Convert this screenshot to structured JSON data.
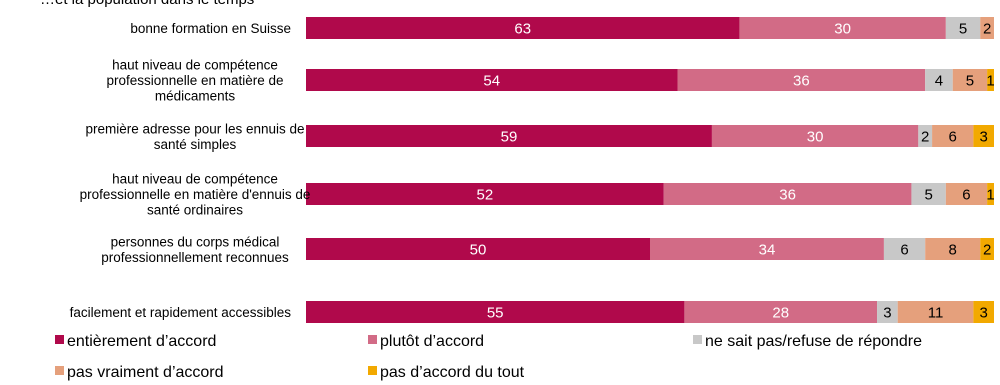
{
  "chart_data": {
    "type": "bar",
    "orientation": "horizontal",
    "stacked": true,
    "title": "…et la population dans le temps",
    "categories": [
      "bonne formation en Suisse",
      "haut niveau de compétence professionnelle en matière de médicaments",
      "première adresse pour les ennuis de santé simples",
      "haut niveau de compétence professionnelle en matière d'ennuis de santé ordinaires",
      "personnes du corps médical professionnellement reconnues",
      "facilement et rapidement accessibles"
    ],
    "category_lines": [
      [
        "bonne formation en Suisse"
      ],
      [
        "haut niveau de compétence",
        "professionnelle en matière de",
        "médicaments"
      ],
      [
        "première adresse pour les ennuis de",
        "santé simples"
      ],
      [
        "haut niveau de compétence",
        "professionnelle en matière d'ennuis de",
        "santé ordinaires"
      ],
      [
        "personnes du corps médical",
        "professionnellement reconnues"
      ],
      [
        "facilement et rapidement accessibles"
      ]
    ],
    "series": [
      {
        "name": "entièrement d’accord",
        "color": "#b0094b",
        "label_color": "#ffffff",
        "values": [
          63,
          54,
          59,
          52,
          50,
          55
        ]
      },
      {
        "name": "plutôt d’accord",
        "color": "#d26b86",
        "label_color": "#ffffff",
        "values": [
          30,
          36,
          30,
          36,
          34,
          28
        ]
      },
      {
        "name": "ne sait pas/refuse de répondre",
        "color": "#c8c8c8",
        "label_color": "#000000",
        "values": [
          5,
          4,
          2,
          5,
          6,
          3
        ]
      },
      {
        "name": "pas vraiment d’accord",
        "color": "#e5a07c",
        "label_color": "#000000",
        "values": [
          2,
          5,
          6,
          6,
          8,
          11
        ]
      },
      {
        "name": "pas d’accord du tout",
        "color": "#f2a900",
        "label_color": "#000000",
        "values": [
          0,
          1,
          3,
          1,
          2,
          3
        ]
      }
    ],
    "xlim": [
      0,
      100
    ],
    "grid": false,
    "legend_position": "bottom"
  }
}
